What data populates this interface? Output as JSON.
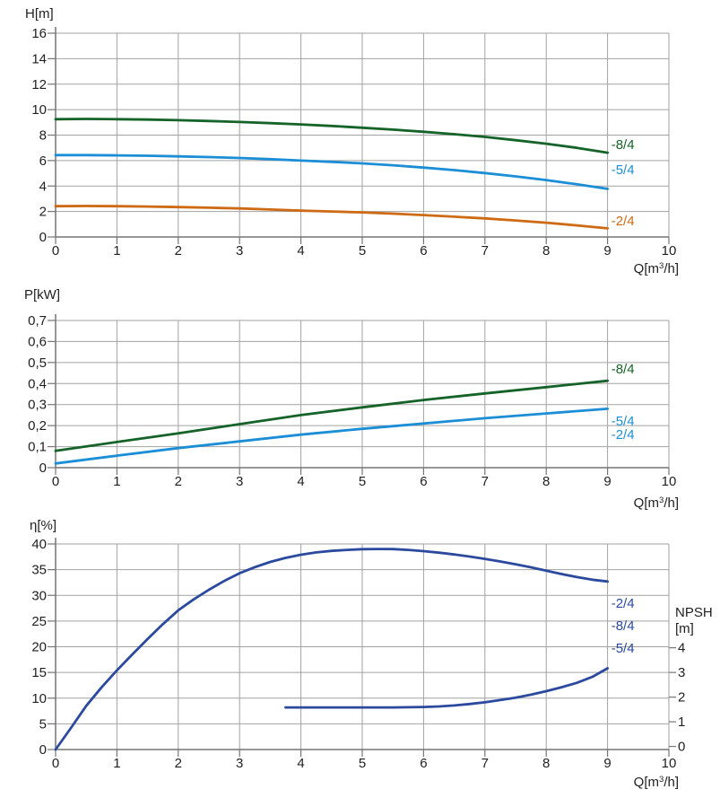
{
  "colors": {
    "grid": "#a2a2a2",
    "axis": "#757575",
    "text": "#1f1f1f",
    "green": "#156329",
    "blue": "#1b8ed6",
    "orange": "#cd6a13",
    "navy": "#2b4a9e"
  },
  "chart_data": [
    {
      "type": "line",
      "name": "head-flow-chart",
      "y_title": "H[m]",
      "x_title_pre": "Q[m",
      "x_title_sup": "3",
      "x_title_post": "/h]",
      "x_axis": {
        "min": 0,
        "max": 10,
        "ticks": [
          {
            "v": 0,
            "label": "0"
          },
          {
            "v": 1,
            "label": "1"
          },
          {
            "v": 2,
            "label": "2"
          },
          {
            "v": 3,
            "label": "3"
          },
          {
            "v": 4,
            "label": "4"
          },
          {
            "v": 5,
            "label": "5"
          },
          {
            "v": 6,
            "label": "6"
          },
          {
            "v": 7,
            "label": "7"
          },
          {
            "v": 8,
            "label": "8"
          },
          {
            "v": 9,
            "label": "9"
          },
          {
            "v": 10,
            "label": "10"
          }
        ]
      },
      "y_axis": {
        "min": 0,
        "max": 16,
        "ticks": [
          {
            "v": 0,
            "label": "0"
          },
          {
            "v": 2,
            "label": "2"
          },
          {
            "v": 4,
            "label": "4"
          },
          {
            "v": 6,
            "label": "6"
          },
          {
            "v": 8,
            "label": "8"
          },
          {
            "v": 10,
            "label": "10"
          },
          {
            "v": 12,
            "label": "12"
          },
          {
            "v": 14,
            "label": "14"
          },
          {
            "v": 16,
            "label": "16"
          }
        ]
      },
      "series": [
        {
          "id": "head-curve-8-4",
          "color_key": "green",
          "points": [
            [
              0,
              9.25
            ],
            [
              0.5,
              9.27
            ],
            [
              1,
              9.25
            ],
            [
              1.5,
              9.22
            ],
            [
              2,
              9.17
            ],
            [
              2.5,
              9.11
            ],
            [
              3,
              9.03
            ],
            [
              3.5,
              8.94
            ],
            [
              4,
              8.84
            ],
            [
              4.5,
              8.72
            ],
            [
              5,
              8.58
            ],
            [
              5.5,
              8.43
            ],
            [
              6,
              8.26
            ],
            [
              6.5,
              8.07
            ],
            [
              7,
              7.86
            ],
            [
              7.5,
              7.6
            ],
            [
              8,
              7.32
            ],
            [
              8.5,
              7.0
            ],
            [
              9,
              6.62
            ]
          ],
          "labels": [
            {
              "text": "-8/4",
              "at": [
                9.06,
                7.26
              ]
            }
          ]
        },
        {
          "id": "head-curve-5-4",
          "color_key": "blue",
          "points": [
            [
              0,
              6.43
            ],
            [
              0.5,
              6.43
            ],
            [
              1,
              6.41
            ],
            [
              1.5,
              6.38
            ],
            [
              2,
              6.33
            ],
            [
              2.5,
              6.27
            ],
            [
              3,
              6.2
            ],
            [
              3.5,
              6.11
            ],
            [
              4,
              6.0
            ],
            [
              4.5,
              5.9
            ],
            [
              5,
              5.78
            ],
            [
              5.5,
              5.63
            ],
            [
              6,
              5.45
            ],
            [
              6.5,
              5.25
            ],
            [
              7,
              5.02
            ],
            [
              7.5,
              4.76
            ],
            [
              8,
              4.47
            ],
            [
              8.5,
              4.14
            ],
            [
              9,
              3.78
            ]
          ],
          "labels": [
            {
              "text": "-5/4",
              "at": [
                9.06,
                5.28
              ]
            }
          ]
        },
        {
          "id": "head-curve-2-4",
          "color_key": "orange",
          "points": [
            [
              0,
              2.42
            ],
            [
              0.5,
              2.43
            ],
            [
              1,
              2.42
            ],
            [
              1.5,
              2.39
            ],
            [
              2,
              2.35
            ],
            [
              2.5,
              2.3
            ],
            [
              3,
              2.24
            ],
            [
              3.5,
              2.16
            ],
            [
              4,
              2.07
            ],
            [
              4.5,
              2.0
            ],
            [
              5,
              1.93
            ],
            [
              5.5,
              1.83
            ],
            [
              6,
              1.72
            ],
            [
              6.5,
              1.59
            ],
            [
              7,
              1.46
            ],
            [
              7.5,
              1.3
            ],
            [
              8,
              1.12
            ],
            [
              8.5,
              0.91
            ],
            [
              9,
              0.68
            ]
          ],
          "labels": [
            {
              "text": "-2/4",
              "at": [
                9.06,
                1.27
              ]
            }
          ]
        }
      ]
    },
    {
      "type": "line",
      "name": "power-flow-chart",
      "y_title": "P[kW]",
      "x_title_pre": "Q[m",
      "x_title_sup": "3",
      "x_title_post": "/h]",
      "x_axis": {
        "min": 0,
        "max": 10,
        "ticks": [
          {
            "v": 0,
            "label": "0"
          },
          {
            "v": 1,
            "label": "1"
          },
          {
            "v": 2,
            "label": "2"
          },
          {
            "v": 3,
            "label": "3"
          },
          {
            "v": 4,
            "label": "4"
          },
          {
            "v": 5,
            "label": "5"
          },
          {
            "v": 6,
            "label": "6"
          },
          {
            "v": 7,
            "label": "7"
          },
          {
            "v": 8,
            "label": "8"
          },
          {
            "v": 9,
            "label": "9"
          },
          {
            "v": 10,
            "label": "10"
          }
        ]
      },
      "y_axis": {
        "min": 0,
        "max": 0.7,
        "ticks": [
          {
            "v": 0,
            "label": "0"
          },
          {
            "v": 0.1,
            "label": "0,1"
          },
          {
            "v": 0.2,
            "label": "0,2"
          },
          {
            "v": 0.3,
            "label": "0,3"
          },
          {
            "v": 0.4,
            "label": "0,4"
          },
          {
            "v": 0.5,
            "label": "0,5"
          },
          {
            "v": 0.6,
            "label": "0,6"
          },
          {
            "v": 0.7,
            "label": "0,7"
          }
        ]
      },
      "series": [
        {
          "id": "power-curve-8-4",
          "color_key": "green",
          "points": [
            [
              0,
              0.08
            ],
            [
              1,
              0.122
            ],
            [
              2,
              0.163
            ],
            [
              3,
              0.207
            ],
            [
              4,
              0.25
            ],
            [
              5,
              0.287
            ],
            [
              6,
              0.322
            ],
            [
              7,
              0.353
            ],
            [
              8,
              0.383
            ],
            [
              9,
              0.413
            ]
          ],
          "labels": [
            {
              "text": "-8/4",
              "at": [
                9.06,
                0.47
              ]
            }
          ]
        },
        {
          "id": "power-curve-5-4-2-4",
          "color_key": "blue",
          "points": [
            [
              0,
              0.02
            ],
            [
              1,
              0.057
            ],
            [
              2,
              0.093
            ],
            [
              3,
              0.125
            ],
            [
              4,
              0.157
            ],
            [
              5,
              0.185
            ],
            [
              6,
              0.21
            ],
            [
              7,
              0.235
            ],
            [
              8,
              0.258
            ],
            [
              9,
              0.28
            ]
          ],
          "labels": [
            {
              "text": "-5/4",
              "at": [
                9.06,
                0.222
              ]
            },
            {
              "text": "-2/4",
              "at": [
                9.06,
                0.158
              ]
            }
          ]
        }
      ]
    },
    {
      "type": "line",
      "name": "efficiency-npsh-chart",
      "y_title": "η[%]",
      "x_title_pre": "Q[m",
      "x_title_sup": "3",
      "x_title_post": "/h]",
      "x_axis": {
        "min": 0,
        "max": 10,
        "ticks": [
          {
            "v": 0,
            "label": "0"
          },
          {
            "v": 1,
            "label": "1"
          },
          {
            "v": 2,
            "label": "2"
          },
          {
            "v": 3,
            "label": "3"
          },
          {
            "v": 4,
            "label": "4"
          },
          {
            "v": 5,
            "label": "5"
          },
          {
            "v": 6,
            "label": "6"
          },
          {
            "v": 7,
            "label": "7"
          },
          {
            "v": 8,
            "label": "8"
          },
          {
            "v": 9,
            "label": "9"
          },
          {
            "v": 10,
            "label": "10"
          }
        ]
      },
      "y_axis": {
        "min": 0,
        "max": 40,
        "ticks": [
          {
            "v": 0,
            "label": "0"
          },
          {
            "v": 5,
            "label": "5"
          },
          {
            "v": 10,
            "label": "10"
          },
          {
            "v": 15,
            "label": "15"
          },
          {
            "v": 20,
            "label": "20"
          },
          {
            "v": 25,
            "label": "25"
          },
          {
            "v": 30,
            "label": "30"
          },
          {
            "v": 35,
            "label": "35"
          },
          {
            "v": 40,
            "label": "40"
          }
        ]
      },
      "y2_axis": {
        "title_line1": "NPSH",
        "title_line2": "[m]",
        "ticks": [
          {
            "v": 0,
            "label": "0"
          },
          {
            "v": 1,
            "label": "1"
          },
          {
            "v": 2,
            "label": "2"
          },
          {
            "v": 3,
            "label": "3"
          },
          {
            "v": 4,
            "label": "4"
          }
        ]
      },
      "series": [
        {
          "id": "efficiency-curve",
          "color_key": "navy",
          "points": [
            [
              0,
              0
            ],
            [
              0.25,
              4.2
            ],
            [
              0.5,
              8.5
            ],
            [
              0.75,
              12.1
            ],
            [
              1,
              15.4
            ],
            [
              1.25,
              18.5
            ],
            [
              1.5,
              21.5
            ],
            [
              1.75,
              24.4
            ],
            [
              2,
              27.1
            ],
            [
              2.25,
              29.2
            ],
            [
              2.5,
              31.1
            ],
            [
              2.75,
              32.8
            ],
            [
              3,
              34.3
            ],
            [
              3.25,
              35.5
            ],
            [
              3.5,
              36.5
            ],
            [
              3.75,
              37.3
            ],
            [
              4,
              37.9
            ],
            [
              4.25,
              38.35
            ],
            [
              4.5,
              38.65
            ],
            [
              4.75,
              38.85
            ],
            [
              5,
              38.98
            ],
            [
              5.25,
              39.03
            ],
            [
              5.5,
              39.0
            ],
            [
              5.75,
              38.85
            ],
            [
              6,
              38.6
            ],
            [
              6.25,
              38.3
            ],
            [
              6.5,
              37.95
            ],
            [
              6.75,
              37.55
            ],
            [
              7,
              37.1
            ],
            [
              7.25,
              36.6
            ],
            [
              7.5,
              36.05
            ],
            [
              7.75,
              35.45
            ],
            [
              8,
              34.8
            ],
            [
              8.25,
              34.15
            ],
            [
              8.5,
              33.55
            ],
            [
              8.75,
              33.05
            ],
            [
              9,
              32.7
            ]
          ],
          "labels": [
            {
              "text": "-2/4",
              "at": [
                9.06,
                28.5
              ]
            },
            {
              "text": "-8/4",
              "at": [
                9.06,
                24.1
              ]
            },
            {
              "text": "-5/4",
              "at": [
                9.06,
                19.7
              ]
            }
          ]
        },
        {
          "id": "npsh-curve",
          "color_key": "navy",
          "axis": "y2",
          "points": [
            [
              3.75,
              1.58
            ],
            [
              4,
              1.58
            ],
            [
              4.5,
              1.58
            ],
            [
              5,
              1.58
            ],
            [
              5.5,
              1.58
            ],
            [
              6,
              1.6
            ],
            [
              6.25,
              1.62
            ],
            [
              6.5,
              1.66
            ],
            [
              6.75,
              1.72
            ],
            [
              7,
              1.79
            ],
            [
              7.25,
              1.88
            ],
            [
              7.5,
              1.98
            ],
            [
              7.75,
              2.1
            ],
            [
              8,
              2.24
            ],
            [
              8.25,
              2.4
            ],
            [
              8.5,
              2.58
            ],
            [
              8.75,
              2.82
            ],
            [
              9,
              3.17
            ]
          ]
        }
      ]
    }
  ]
}
